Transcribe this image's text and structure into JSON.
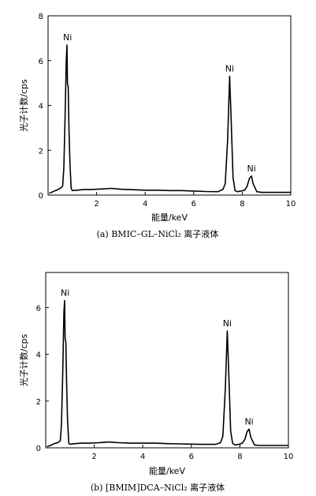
{
  "chart_data": [
    {
      "type": "line",
      "caption": "(a) BMIC–GL–NiCl₂ 离子液体",
      "xlabel": "能量/keV",
      "ylabel": "光子计数/cps",
      "xlim": [
        0,
        10
      ],
      "ylim": [
        0,
        8
      ],
      "xticks": [
        2,
        4,
        6,
        8,
        10
      ],
      "yticks": [
        0,
        2,
        4,
        6,
        8
      ],
      "grid": false,
      "series": [
        {
          "x": [
            0.05,
            0.2,
            0.35,
            0.5,
            0.6,
            0.65,
            0.7,
            0.75,
            0.78,
            0.8,
            0.83,
            0.86,
            0.9,
            0.95,
            1.0,
            1.2,
            1.5,
            1.8,
            2.2,
            2.6,
            3.0,
            3.5,
            4.0,
            4.5,
            5.0,
            5.5,
            6.0,
            6.5,
            7.0,
            7.2,
            7.3,
            7.4,
            7.48,
            7.55,
            7.62,
            7.7,
            7.8,
            7.95,
            8.1,
            8.2,
            8.3,
            8.38,
            8.45,
            8.6,
            8.8,
            9.2,
            9.6,
            10.0
          ],
          "y": [
            0.08,
            0.15,
            0.22,
            0.3,
            0.4,
            1.2,
            3.5,
            6.0,
            6.7,
            5.0,
            4.8,
            3.0,
            1.5,
            0.3,
            0.2,
            0.22,
            0.25,
            0.25,
            0.27,
            0.3,
            0.26,
            0.24,
            0.22,
            0.22,
            0.2,
            0.2,
            0.18,
            0.16,
            0.15,
            0.25,
            0.5,
            2.5,
            5.3,
            3.2,
            0.8,
            0.2,
            0.15,
            0.18,
            0.22,
            0.4,
            0.75,
            0.85,
            0.5,
            0.15,
            0.12,
            0.12,
            0.12,
            0.12
          ]
        }
      ],
      "annotations": [
        {
          "text": "Ni",
          "x": 0.8,
          "y": 6.7
        },
        {
          "text": "Ni",
          "x": 7.48,
          "y": 5.3
        },
        {
          "text": "Ni",
          "x": 8.38,
          "y": 0.85
        }
      ]
    },
    {
      "type": "line",
      "caption": "(b) [BMIM]DCA–NiCl₂ 离子液体",
      "xlabel": "能量/keV",
      "ylabel": "光子计数/cps",
      "xlim": [
        0,
        10
      ],
      "ylim": [
        0,
        7.5
      ],
      "xticks": [
        2,
        4,
        6,
        8,
        10
      ],
      "yticks": [
        0,
        2,
        4,
        6
      ],
      "grid": false,
      "series": [
        {
          "x": [
            0.05,
            0.2,
            0.35,
            0.5,
            0.6,
            0.65,
            0.7,
            0.75,
            0.78,
            0.8,
            0.83,
            0.86,
            0.9,
            0.95,
            1.0,
            1.2,
            1.5,
            1.8,
            2.2,
            2.6,
            3.0,
            3.5,
            4.0,
            4.5,
            5.0,
            5.5,
            6.0,
            6.5,
            7.0,
            7.2,
            7.3,
            7.4,
            7.48,
            7.55,
            7.62,
            7.7,
            7.8,
            7.95,
            8.1,
            8.2,
            8.3,
            8.38,
            8.45,
            8.6,
            8.8,
            9.2,
            9.6,
            10.0
          ],
          "y": [
            0.05,
            0.1,
            0.18,
            0.22,
            0.3,
            1.0,
            3.2,
            5.8,
            6.3,
            4.7,
            4.5,
            2.8,
            1.2,
            0.2,
            0.15,
            0.18,
            0.2,
            0.2,
            0.22,
            0.25,
            0.22,
            0.2,
            0.2,
            0.2,
            0.18,
            0.17,
            0.16,
            0.15,
            0.15,
            0.22,
            0.5,
            2.5,
            5.0,
            3.0,
            0.7,
            0.2,
            0.12,
            0.15,
            0.2,
            0.35,
            0.7,
            0.8,
            0.45,
            0.12,
            0.1,
            0.1,
            0.1,
            0.1
          ]
        }
      ],
      "annotations": [
        {
          "text": "Ni",
          "x": 0.8,
          "y": 6.3
        },
        {
          "text": "Ni",
          "x": 7.48,
          "y": 5.0
        },
        {
          "text": "Ni",
          "x": 8.38,
          "y": 0.8
        }
      ]
    }
  ]
}
